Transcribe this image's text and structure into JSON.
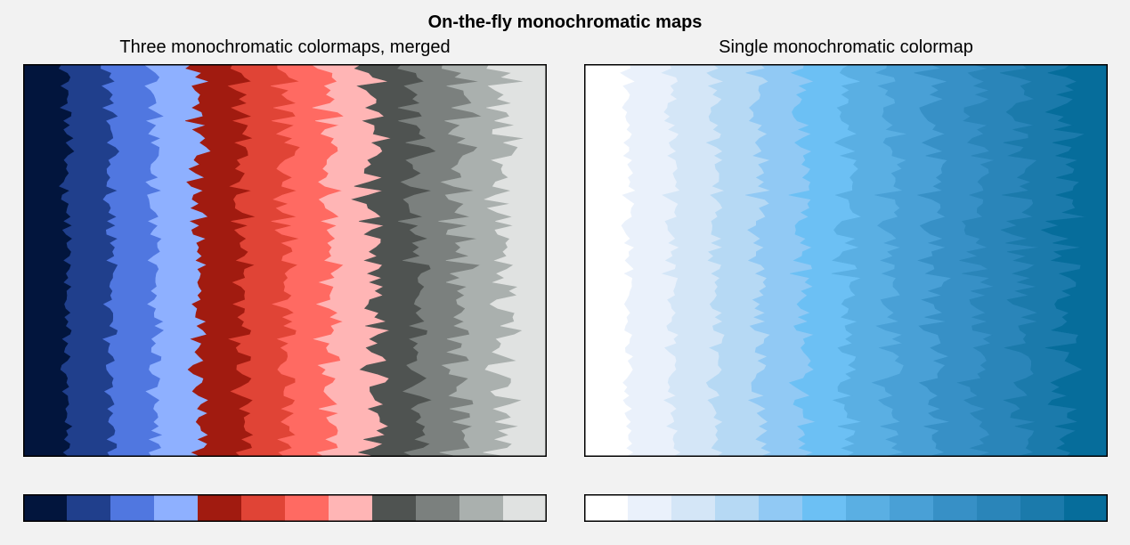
{
  "figure": {
    "title": "On-the-fly monochromatic maps"
  },
  "chart_data": [
    {
      "type": "filled_contour",
      "title": "Three monochromatic colormaps, merged",
      "xlabel": "",
      "ylabel": "",
      "ticks_visible": false,
      "grid": false,
      "colormap": "merged monochromatic (navy/blue, red, gray)",
      "levels": 12,
      "colors": [
        "#02153d",
        "#203f8c",
        "#5077e0",
        "#8eb0ff",
        "#a11b10",
        "#e04436",
        "#ff6a62",
        "#ffb5b5",
        "#4f5351",
        "#7b807e",
        "#aab0ae",
        "#e0e2e1"
      ],
      "colorbar": {
        "location": "bottom",
        "segments": 12
      }
    },
    {
      "type": "filled_contour",
      "title": "Single monochromatic colormap",
      "xlabel": "",
      "ylabel": "",
      "ticks_visible": false,
      "grid": false,
      "colormap": "single monochromatic (blue)",
      "levels": 12,
      "colors": [
        "#ffffff",
        "#eaf1fb",
        "#d4e6f7",
        "#b6d9f4",
        "#91c9f4",
        "#6cc0f4",
        "#5aafe3",
        "#49a0d6",
        "#3790c6",
        "#2a85b9",
        "#1b7aab",
        "#066d9b"
      ],
      "colorbar": {
        "location": "bottom",
        "segments": 12
      }
    }
  ]
}
